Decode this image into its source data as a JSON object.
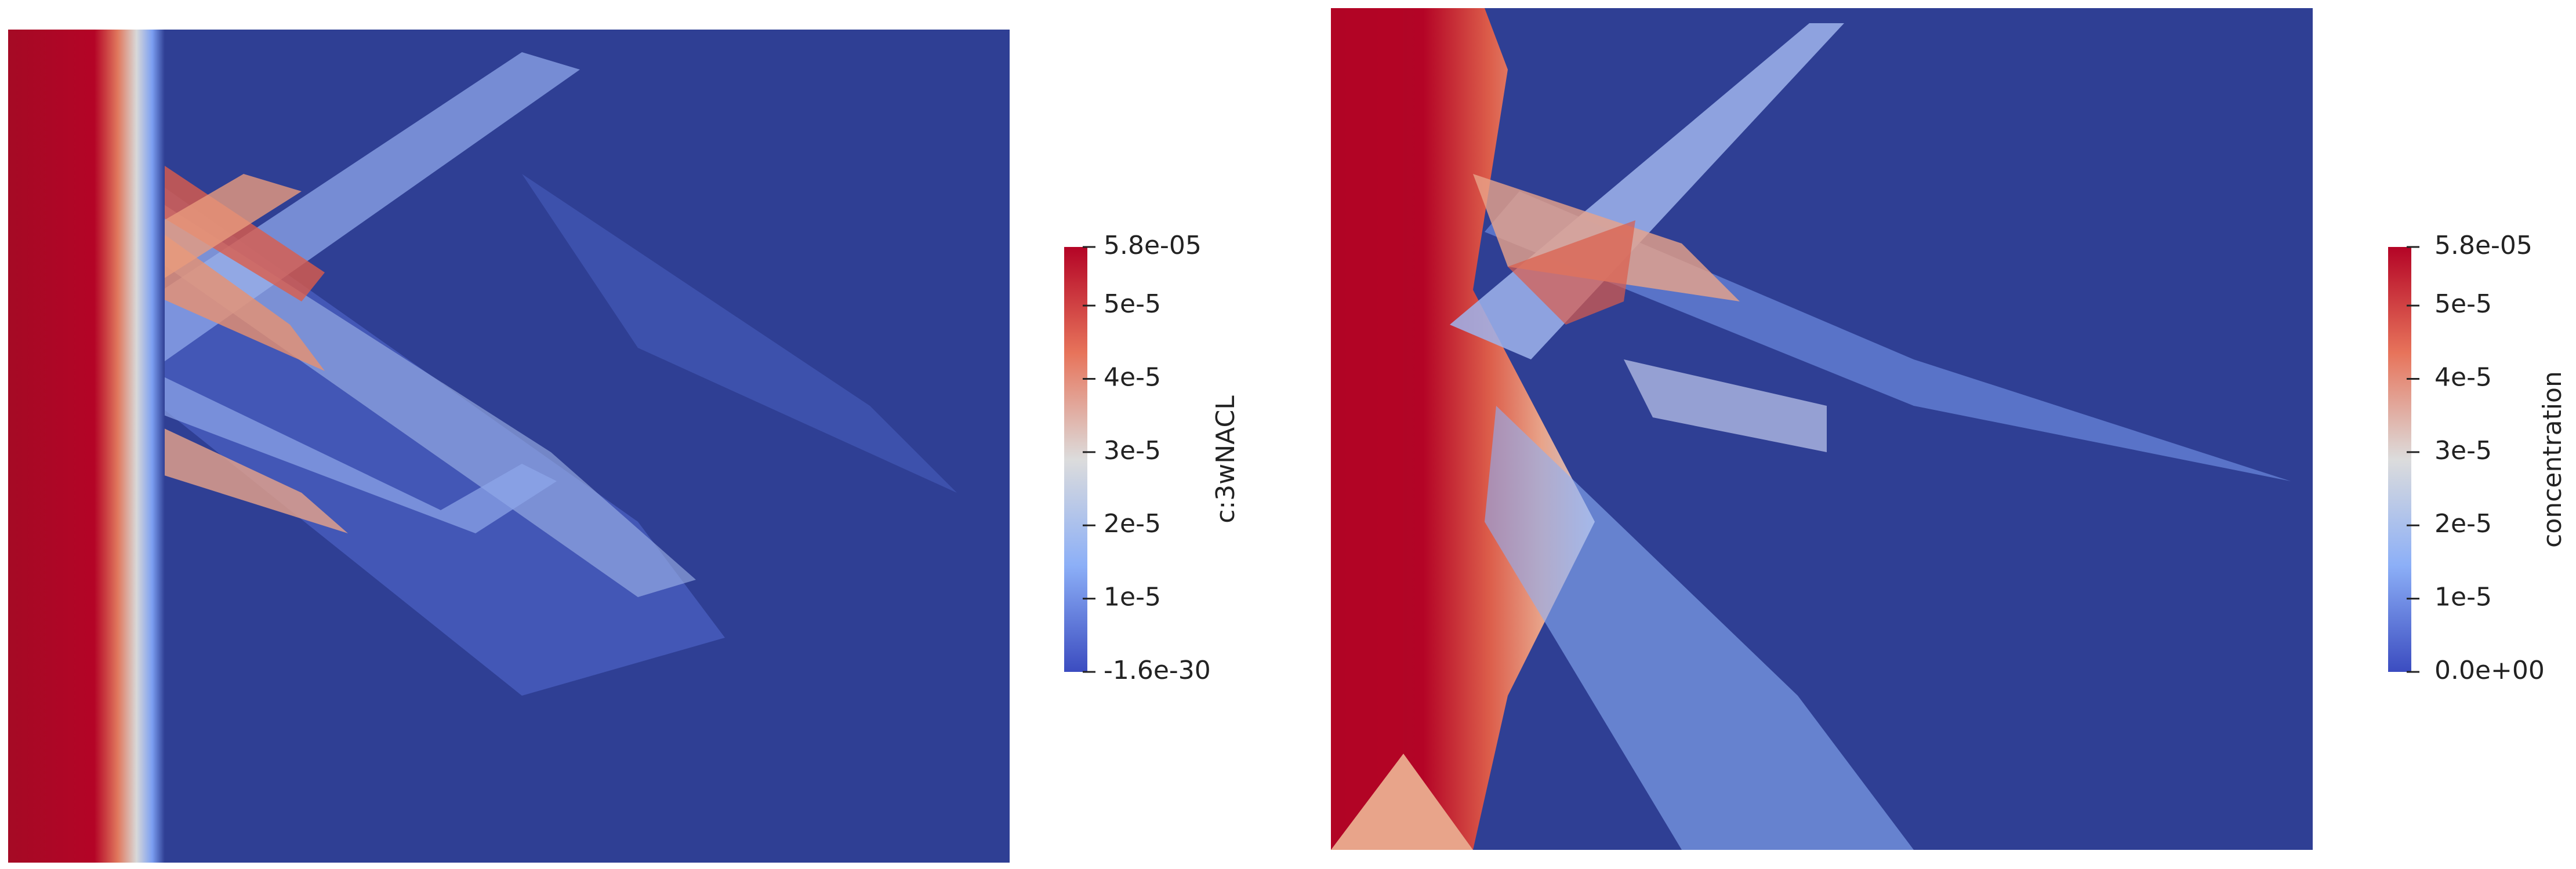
{
  "chart_data": [
    {
      "type": "heatmap",
      "colorbar": {
        "title": "c:3wNACL",
        "range": [
          -1.6e-30,
          5.8e-05
        ],
        "ticks": [
          {
            "value": 5.8e-05,
            "label": "5.8e-05"
          },
          {
            "value": 5e-05,
            "label": "5e-5"
          },
          {
            "value": 4e-05,
            "label": "4e-5"
          },
          {
            "value": 3e-05,
            "label": "3e-5"
          },
          {
            "value": 2e-05,
            "label": "2e-5"
          },
          {
            "value": 1e-05,
            "label": "1e-5"
          },
          {
            "value": -1.6e-30,
            "label": "-1.6e-30"
          }
        ]
      }
    },
    {
      "type": "heatmap",
      "colorbar": {
        "title": "concentration",
        "range": [
          0,
          5.8e-05
        ],
        "ticks": [
          {
            "value": 5.8e-05,
            "label": "5.8e-05"
          },
          {
            "value": 5e-05,
            "label": "5e-5"
          },
          {
            "value": 4e-05,
            "label": "4e-5"
          },
          {
            "value": 3e-05,
            "label": "3e-5"
          },
          {
            "value": 2e-05,
            "label": "2e-5"
          },
          {
            "value": 1e-05,
            "label": "1e-5"
          },
          {
            "value": 0,
            "label": "0.0e+00"
          }
        ]
      }
    }
  ]
}
